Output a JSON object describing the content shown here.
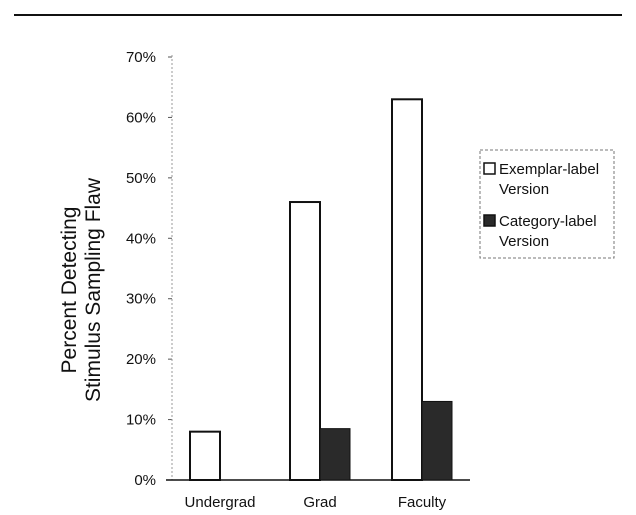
{
  "chart_data": {
    "type": "bar",
    "title": "",
    "ylabel_line1": "Percent Detecting",
    "ylabel_line2": "Stimulus Sampling Flaw",
    "xlabel": "",
    "categories": [
      "Undergrad",
      "Grad",
      "Faculty"
    ],
    "yticks": [
      "0%",
      "10%",
      "20%",
      "30%",
      "40%",
      "50%",
      "60%",
      "70%"
    ],
    "ylim": [
      0,
      70
    ],
    "legend_position": "right",
    "series": [
      {
        "name_line1": "Exemplar-label",
        "name_line2": "Version",
        "values": [
          8,
          46,
          63
        ],
        "color": "#ffffff"
      },
      {
        "name_line1": "Category-label",
        "name_line2": "Version",
        "values": [
          0,
          8.5,
          13
        ],
        "color": "#2a2a2a"
      }
    ]
  }
}
